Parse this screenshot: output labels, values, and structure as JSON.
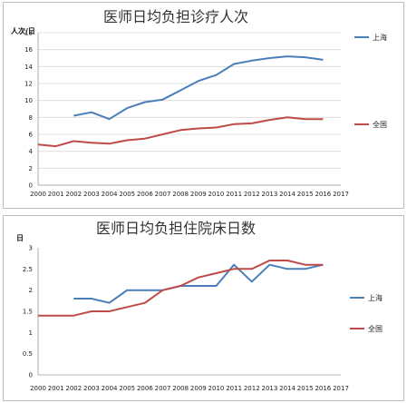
{
  "chart_data": [
    {
      "type": "line",
      "title": "医师日均负担诊疗人次",
      "ylabel": "人次/日",
      "categories": [
        "2000",
        "2001",
        "2002",
        "2003",
        "2004",
        "2005",
        "2006",
        "2007",
        "2008",
        "2009",
        "2010",
        "2011",
        "2012",
        "2013",
        "2014",
        "2015",
        "2016",
        "2017"
      ],
      "ylim": [
        0,
        18
      ],
      "yticks": [
        0,
        2,
        4,
        6,
        8,
        10,
        12,
        14,
        16,
        18
      ],
      "grid": true,
      "legend": "right",
      "series": [
        {
          "name": "上海",
          "color": "#4a7ebb",
          "values": [
            null,
            null,
            8.2,
            8.6,
            7.8,
            9.1,
            9.8,
            10.1,
            11.2,
            12.3,
            13.0,
            14.3,
            14.7,
            15.0,
            15.2,
            15.1,
            14.8,
            null
          ]
        },
        {
          "name": "全国",
          "color": "#be4b48",
          "values": [
            4.8,
            4.6,
            5.2,
            5.0,
            4.9,
            5.3,
            5.5,
            6.0,
            6.5,
            6.7,
            6.8,
            7.2,
            7.3,
            7.7,
            8.0,
            7.8,
            7.8,
            null
          ]
        }
      ]
    },
    {
      "type": "line",
      "title": "医师日均负担住院床日数",
      "ylabel": "日",
      "categories": [
        "2000",
        "2001",
        "2002",
        "2003",
        "2004",
        "2005",
        "2006",
        "2007",
        "2008",
        "2009",
        "2010",
        "2011",
        "2012",
        "2013",
        "2014",
        "2015",
        "2016",
        "2017"
      ],
      "ylim": [
        0,
        3
      ],
      "yticks": [
        0,
        0.5,
        1,
        1.5,
        2,
        2.5,
        3
      ],
      "grid": false,
      "legend": "right",
      "series": [
        {
          "name": "上海",
          "color": "#4a7ebb",
          "values": [
            null,
            null,
            1.8,
            1.8,
            1.7,
            2.0,
            2.0,
            2.0,
            2.1,
            2.1,
            2.1,
            2.6,
            2.2,
            2.6,
            2.5,
            2.5,
            2.6,
            null
          ]
        },
        {
          "name": "全国",
          "color": "#be4b48",
          "values": [
            1.4,
            1.4,
            1.4,
            1.5,
            1.5,
            1.6,
            1.7,
            2.0,
            2.1,
            2.3,
            2.4,
            2.5,
            2.5,
            2.7,
            2.7,
            2.6,
            2.6,
            null
          ]
        }
      ]
    }
  ]
}
